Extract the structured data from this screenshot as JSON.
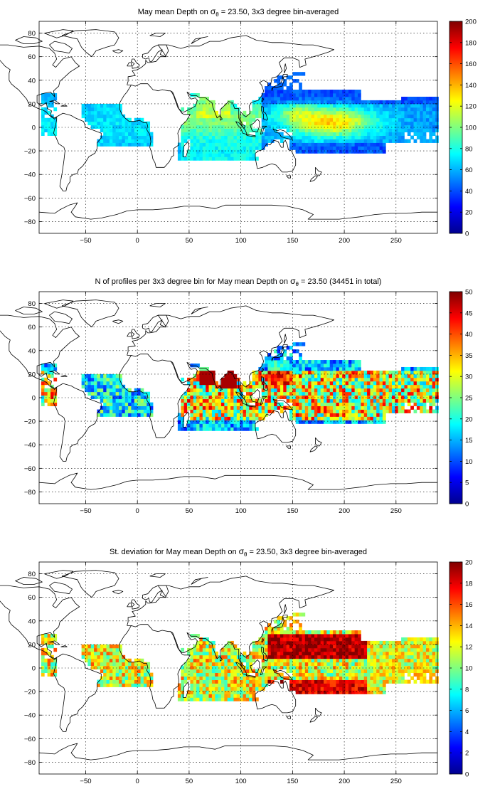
{
  "chart_data": [
    {
      "type": "heatmap",
      "title": {
        "pre": "May mean Depth on ",
        "sym": "σ",
        "sub": "θ",
        "post": " = 23.50, 3x3 degree bin-averaged"
      },
      "xlim": [
        -95,
        290
      ],
      "ylim": [
        -90,
        90
      ],
      "xticks": [
        -50,
        0,
        50,
        100,
        150,
        200,
        250
      ],
      "yticks": [
        -80,
        -60,
        -40,
        -20,
        0,
        20,
        40,
        60,
        80
      ],
      "grid": true,
      "colorbar": {
        "min": 0,
        "max": 200,
        "ticks": [
          0,
          20,
          40,
          60,
          80,
          100,
          120,
          140,
          160,
          180,
          200
        ]
      },
      "field": "depth",
      "bin_degrees": 3
    },
    {
      "type": "heatmap",
      "title": {
        "pre": "N of profiles per 3x3 degree bin for May mean Depth on ",
        "sym": "σ",
        "sub": "θ",
        "post": " = 23.50 (34451 in total)"
      },
      "xlim": [
        -95,
        290
      ],
      "ylim": [
        -90,
        90
      ],
      "xticks": [
        -50,
        0,
        50,
        100,
        150,
        200,
        250
      ],
      "yticks": [
        -80,
        -60,
        -40,
        -20,
        0,
        20,
        40,
        60,
        80
      ],
      "grid": true,
      "colorbar": {
        "min": 0,
        "max": 50,
        "ticks": [
          0,
          5,
          10,
          15,
          20,
          25,
          30,
          35,
          40,
          45,
          50
        ]
      },
      "field": "count",
      "total_profiles": 34451,
      "bin_degrees": 3
    },
    {
      "type": "heatmap",
      "title": {
        "pre": "St. deviation for May mean Depth on ",
        "sym": "σ",
        "sub": "θ",
        "post": " = 23.50, 3x3 degree bin-averaged"
      },
      "xlim": [
        -95,
        290
      ],
      "ylim": [
        -90,
        90
      ],
      "xticks": [
        -50,
        0,
        50,
        100,
        150,
        200,
        250
      ],
      "yticks": [
        -80,
        -60,
        -40,
        -20,
        0,
        20,
        40,
        60,
        80
      ],
      "grid": true,
      "colorbar": {
        "min": 0,
        "max": 20,
        "ticks": [
          0,
          2,
          4,
          6,
          8,
          10,
          12,
          14,
          16,
          18,
          20
        ]
      },
      "field": "std",
      "bin_degrees": 3
    }
  ]
}
